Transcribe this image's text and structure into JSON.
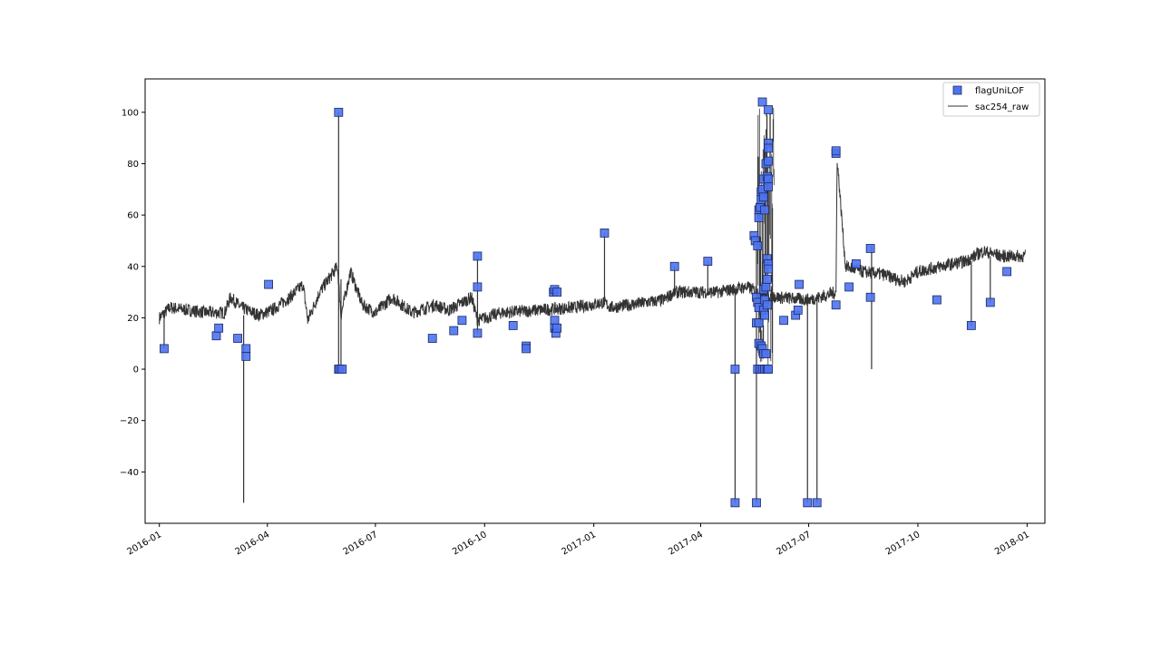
{
  "chart_data": {
    "type": "line",
    "title": "",
    "xlabel": "",
    "ylabel": "",
    "x_range": [
      "2015-12-20",
      "2018-01-16"
    ],
    "ylim": [
      -60,
      113
    ],
    "x_ticks": [
      "2016-01",
      "2016-04",
      "2016-07",
      "2016-10",
      "2017-01",
      "2017-04",
      "2017-07",
      "2017-10",
      "2018-01"
    ],
    "y_ticks": [
      -40,
      -20,
      0,
      20,
      40,
      60,
      80,
      100
    ],
    "grid": false,
    "legend": {
      "position": "top-right",
      "entries": [
        "flagUniLOF",
        "sac254_raw"
      ]
    },
    "colors": {
      "line": "#333333",
      "marker_fill": "#4f73f0",
      "marker_edge": "#1a2a66",
      "marker_fill_dark": "#2246e8"
    },
    "series": [
      {
        "name": "sac254_raw",
        "kind": "line",
        "baseline": [
          [
            "2016-01-01",
            20
          ],
          [
            "2016-01-10",
            24
          ],
          [
            "2016-01-25",
            23
          ],
          [
            "2016-02-10",
            22
          ],
          [
            "2016-02-25",
            22
          ],
          [
            "2016-03-01",
            28
          ],
          [
            "2016-03-10",
            24
          ],
          [
            "2016-03-25",
            21
          ],
          [
            "2016-04-05",
            23
          ],
          [
            "2016-04-20",
            28
          ],
          [
            "2016-05-01",
            33
          ],
          [
            "2016-05-05",
            19
          ],
          [
            "2016-05-15",
            30
          ],
          [
            "2016-05-30",
            40
          ],
          [
            "2016-06-02",
            21
          ],
          [
            "2016-06-10",
            38
          ],
          [
            "2016-06-20",
            25
          ],
          [
            "2016-07-01",
            22
          ],
          [
            "2016-07-15",
            28
          ],
          [
            "2016-08-01",
            22
          ],
          [
            "2016-08-20",
            25
          ],
          [
            "2016-09-01",
            23
          ],
          [
            "2016-09-20",
            28
          ],
          [
            "2016-09-25",
            19
          ],
          [
            "2016-10-15",
            22
          ],
          [
            "2016-11-15",
            23
          ],
          [
            "2016-12-15",
            24
          ],
          [
            "2017-01-10",
            26
          ],
          [
            "2017-01-15",
            24
          ],
          [
            "2017-02-15",
            26
          ],
          [
            "2017-03-01",
            27
          ],
          [
            "2017-03-10",
            30
          ],
          [
            "2017-04-15",
            30
          ],
          [
            "2017-05-10",
            32
          ],
          [
            "2017-05-20",
            30
          ],
          [
            "2017-06-05",
            28
          ],
          [
            "2017-07-01",
            27
          ],
          [
            "2017-07-10",
            28
          ],
          [
            "2017-07-24",
            30
          ],
          [
            "2017-07-25",
            82
          ],
          [
            "2017-08-01",
            40
          ],
          [
            "2017-08-15",
            38
          ],
          [
            "2017-09-01",
            37
          ],
          [
            "2017-09-20",
            34
          ],
          [
            "2017-10-01",
            38
          ],
          [
            "2017-10-20",
            40
          ],
          [
            "2017-11-10",
            42
          ],
          [
            "2017-11-25",
            46
          ],
          [
            "2017-12-10",
            44
          ],
          [
            "2017-12-31",
            44
          ]
        ],
        "spikes": [
          [
            "2016-01-05",
            8,
            21
          ],
          [
            "2016-03-12",
            -52,
            21
          ],
          [
            "2016-05-31",
            100,
            -1
          ],
          [
            "2016-06-02",
            0,
            35
          ],
          [
            "2016-09-25",
            14,
            44
          ],
          [
            "2017-01-10",
            53,
            25
          ],
          [
            "2017-03-10",
            40,
            30
          ],
          [
            "2017-04-07",
            42,
            30
          ],
          [
            "2017-04-30",
            -52,
            31
          ],
          [
            "2017-05-18",
            -52,
            52
          ],
          [
            "2017-06-30",
            -52,
            28
          ],
          [
            "2017-07-08",
            -52,
            28
          ],
          [
            "2017-08-23",
            0,
            48
          ],
          [
            "2017-11-15",
            17,
            42
          ],
          [
            "2017-12-01",
            26,
            44
          ]
        ],
        "burst": {
          "start": "2017-05-19",
          "end": "2017-06-02",
          "low": 0,
          "high": 104
        }
      },
      {
        "name": "flagUniLOF",
        "kind": "scatter",
        "points": [
          [
            "2016-01-05",
            8
          ],
          [
            "2016-02-18",
            13
          ],
          [
            "2016-02-20",
            16
          ],
          [
            "2016-03-07",
            12
          ],
          [
            "2016-03-14",
            8
          ],
          [
            "2016-03-14",
            5
          ],
          [
            "2016-04-02",
            33
          ],
          [
            "2016-05-31",
            100
          ],
          [
            "2016-05-31",
            0
          ],
          [
            "2016-06-01",
            0
          ],
          [
            "2016-06-03",
            0
          ],
          [
            "2016-08-18",
            12
          ],
          [
            "2016-09-05",
            15
          ],
          [
            "2016-09-12",
            19
          ],
          [
            "2016-09-25",
            44
          ],
          [
            "2016-09-25",
            32
          ],
          [
            "2016-09-25",
            14
          ],
          [
            "2016-10-25",
            17
          ],
          [
            "2016-11-05",
            9
          ],
          [
            "2016-11-05",
            8
          ],
          [
            "2016-11-28",
            30
          ],
          [
            "2016-11-29",
            31
          ],
          [
            "2016-11-29",
            19
          ],
          [
            "2016-11-29",
            16
          ],
          [
            "2016-11-30",
            14
          ],
          [
            "2016-12-01",
            30
          ],
          [
            "2016-12-01",
            16
          ],
          [
            "2017-01-10",
            53
          ],
          [
            "2017-03-10",
            40
          ],
          [
            "2017-04-07",
            42
          ],
          [
            "2017-04-30",
            0
          ],
          [
            "2017-04-30",
            -52
          ],
          [
            "2017-05-16",
            52
          ],
          [
            "2017-05-17",
            50
          ],
          [
            "2017-05-18",
            28
          ],
          [
            "2017-05-18",
            18
          ],
          [
            "2017-05-18",
            -52
          ],
          [
            "2017-05-19",
            48
          ],
          [
            "2017-05-19",
            26
          ],
          [
            "2017-05-19",
            0
          ],
          [
            "2017-05-20",
            62
          ],
          [
            "2017-05-20",
            59
          ],
          [
            "2017-05-20",
            24
          ],
          [
            "2017-05-20",
            18
          ],
          [
            "2017-05-20",
            10
          ],
          [
            "2017-05-21",
            63
          ],
          [
            "2017-05-21",
            0
          ],
          [
            "2017-05-22",
            69
          ],
          [
            "2017-05-22",
            66
          ],
          [
            "2017-05-22",
            9
          ],
          [
            "2017-05-23",
            104
          ],
          [
            "2017-05-23",
            70
          ],
          [
            "2017-05-23",
            8
          ],
          [
            "2017-05-23",
            0
          ],
          [
            "2017-05-24",
            74
          ],
          [
            "2017-05-24",
            67
          ],
          [
            "2017-05-24",
            31
          ],
          [
            "2017-05-24",
            23
          ],
          [
            "2017-05-24",
            6
          ],
          [
            "2017-05-25",
            62
          ],
          [
            "2017-05-25",
            27
          ],
          [
            "2017-05-25",
            21
          ],
          [
            "2017-05-25",
            0
          ],
          [
            "2017-05-26",
            80
          ],
          [
            "2017-05-26",
            32
          ],
          [
            "2017-05-26",
            6
          ],
          [
            "2017-05-27",
            75
          ],
          [
            "2017-05-27",
            43
          ],
          [
            "2017-05-27",
            35
          ],
          [
            "2017-05-27",
            25
          ],
          [
            "2017-05-27",
            0
          ],
          [
            "2017-05-28",
            101
          ],
          [
            "2017-05-28",
            88
          ],
          [
            "2017-05-28",
            86
          ],
          [
            "2017-05-28",
            81
          ],
          [
            "2017-05-28",
            74
          ],
          [
            "2017-05-28",
            71
          ],
          [
            "2017-05-28",
            41
          ],
          [
            "2017-05-28",
            39
          ],
          [
            "2017-05-28",
            0
          ],
          [
            "2017-06-10",
            19
          ],
          [
            "2017-06-20",
            21
          ],
          [
            "2017-06-22",
            23
          ],
          [
            "2017-06-23",
            33
          ],
          [
            "2017-06-30",
            -52
          ],
          [
            "2017-07-08",
            -52
          ],
          [
            "2017-07-24",
            84
          ],
          [
            "2017-07-24",
            85
          ],
          [
            "2017-07-24",
            25
          ],
          [
            "2017-08-04",
            32
          ],
          [
            "2017-08-10",
            41
          ],
          [
            "2017-08-22",
            47
          ],
          [
            "2017-08-22",
            28
          ],
          [
            "2017-10-17",
            27
          ],
          [
            "2017-11-15",
            17
          ],
          [
            "2017-12-01",
            26
          ],
          [
            "2017-12-15",
            38
          ]
        ]
      }
    ]
  }
}
